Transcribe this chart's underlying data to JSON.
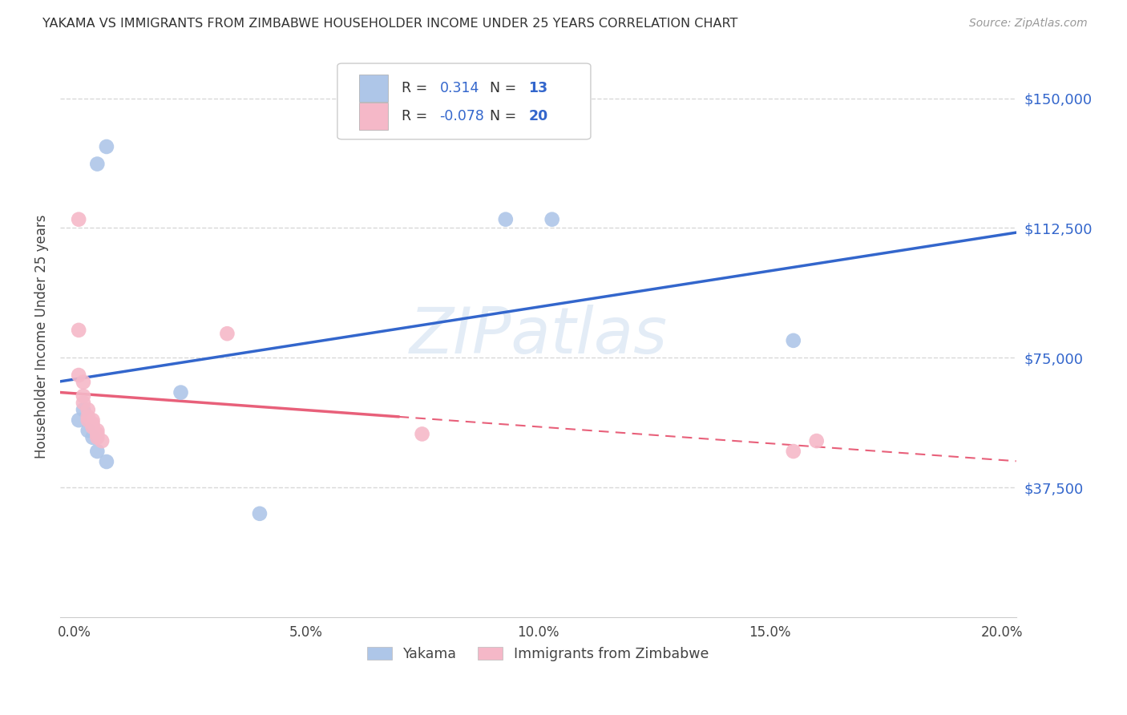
{
  "title": "YAKAMA VS IMMIGRANTS FROM ZIMBABWE HOUSEHOLDER INCOME UNDER 25 YEARS CORRELATION CHART",
  "source": "Source: ZipAtlas.com",
  "ylabel": "Householder Income Under 25 years",
  "ytick_labels": [
    "$37,500",
    "$75,000",
    "$112,500",
    "$150,000"
  ],
  "ytick_vals": [
    37500,
    75000,
    112500,
    150000
  ],
  "ylim": [
    0,
    162500
  ],
  "xlim": [
    -0.003,
    0.203
  ],
  "yakama_R": 0.314,
  "yakama_N": 13,
  "zimbabwe_R": -0.078,
  "zimbabwe_N": 20,
  "yakama_color": "#aec6e8",
  "zimbabwe_color": "#f5b8c8",
  "trendline_yakama_color": "#3366cc",
  "trendline_zimbabwe_color": "#e8607a",
  "watermark_color": "#ccddf0",
  "background_color": "#ffffff",
  "grid_color": "#d8d8d8",
  "yakama_points": [
    [
      0.007,
      136000
    ],
    [
      0.005,
      131000
    ],
    [
      0.093,
      115000
    ],
    [
      0.103,
      115000
    ],
    [
      0.155,
      80000
    ],
    [
      0.023,
      65000
    ],
    [
      0.002,
      60000
    ],
    [
      0.001,
      57000
    ],
    [
      0.003,
      54000
    ],
    [
      0.004,
      52000
    ],
    [
      0.005,
      48000
    ],
    [
      0.007,
      45000
    ],
    [
      0.04,
      30000
    ]
  ],
  "zimbabwe_points": [
    [
      0.001,
      115000
    ],
    [
      0.001,
      83000
    ],
    [
      0.001,
      70000
    ],
    [
      0.002,
      68000
    ],
    [
      0.002,
      64000
    ],
    [
      0.002,
      62000
    ],
    [
      0.003,
      60000
    ],
    [
      0.003,
      58000
    ],
    [
      0.003,
      57000
    ],
    [
      0.004,
      57000
    ],
    [
      0.004,
      56000
    ],
    [
      0.004,
      55000
    ],
    [
      0.005,
      54000
    ],
    [
      0.005,
      53000
    ],
    [
      0.005,
      52000
    ],
    [
      0.006,
      51000
    ],
    [
      0.033,
      82000
    ],
    [
      0.075,
      53000
    ],
    [
      0.155,
      48000
    ],
    [
      0.16,
      51000
    ]
  ]
}
